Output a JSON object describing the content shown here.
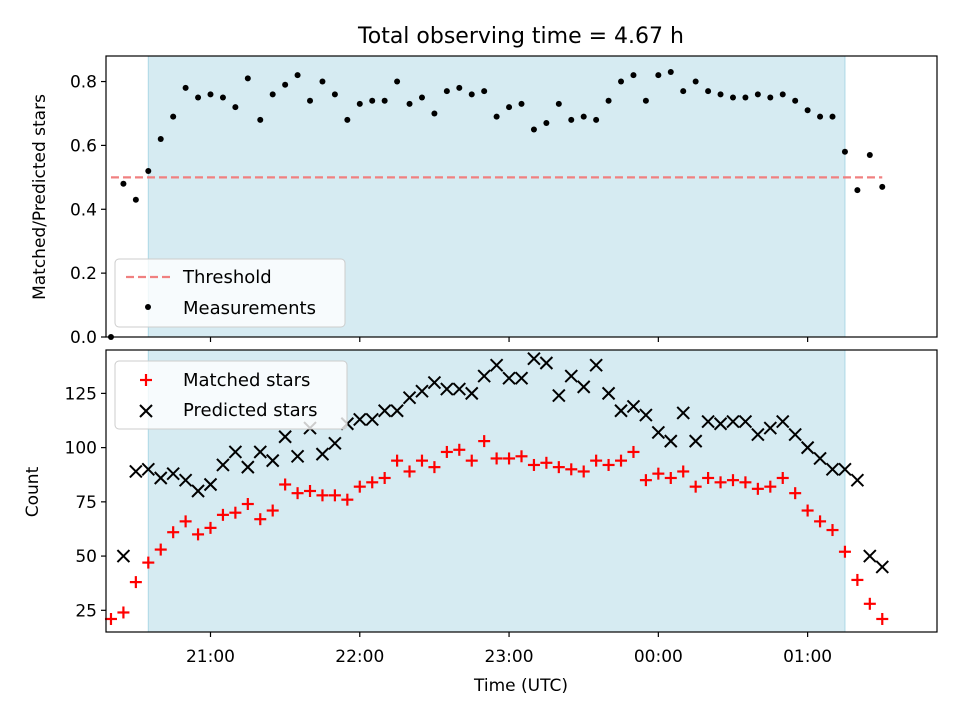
{
  "chart_data": {
    "title": "Total observing time = 4.67 h",
    "xlabel": "Time (UTC)",
    "x_range": [
      "20:18",
      "01:52"
    ],
    "x_ticks": [
      "21:00",
      "22:00",
      "23:00",
      "00:00",
      "01:00"
    ],
    "shaded_interval": [
      "20:35",
      "01:15"
    ],
    "shade_color": "#add8e6",
    "top_panel": {
      "type": "scatter",
      "ylabel": "Matched/Predicted stars",
      "ylim": [
        0,
        0.88
      ],
      "y_ticks": [
        "0.0",
        "0.2",
        "0.4",
        "0.6",
        "0.8"
      ],
      "threshold": {
        "name": "Threshold",
        "value": 0.5,
        "from": "20:20",
        "to": "01:30",
        "color": "#f08080"
      },
      "series": [
        {
          "name": "Measurements",
          "color": "#000000",
          "points": [
            [
              "20:20",
              0.0
            ],
            [
              "20:25",
              0.48
            ],
            [
              "20:30",
              0.43
            ],
            [
              "20:35",
              0.52
            ],
            [
              "20:40",
              0.62
            ],
            [
              "20:45",
              0.69
            ],
            [
              "20:50",
              0.78
            ],
            [
              "20:55",
              0.75
            ],
            [
              "21:00",
              0.76
            ],
            [
              "21:05",
              0.75
            ],
            [
              "21:10",
              0.72
            ],
            [
              "21:15",
              0.81
            ],
            [
              "21:20",
              0.68
            ],
            [
              "21:25",
              0.76
            ],
            [
              "21:30",
              0.79
            ],
            [
              "21:35",
              0.82
            ],
            [
              "21:40",
              0.74
            ],
            [
              "21:45",
              0.8
            ],
            [
              "21:50",
              0.76
            ],
            [
              "21:55",
              0.68
            ],
            [
              "22:00",
              0.73
            ],
            [
              "22:05",
              0.74
            ],
            [
              "22:10",
              0.74
            ],
            [
              "22:15",
              0.8
            ],
            [
              "22:20",
              0.73
            ],
            [
              "22:25",
              0.75
            ],
            [
              "22:30",
              0.7
            ],
            [
              "22:35",
              0.77
            ],
            [
              "22:40",
              0.78
            ],
            [
              "22:45",
              0.76
            ],
            [
              "22:50",
              0.77
            ],
            [
              "22:55",
              0.69
            ],
            [
              "23:00",
              0.72
            ],
            [
              "23:05",
              0.73
            ],
            [
              "23:10",
              0.65
            ],
            [
              "23:15",
              0.67
            ],
            [
              "23:20",
              0.73
            ],
            [
              "23:25",
              0.68
            ],
            [
              "23:30",
              0.69
            ],
            [
              "23:35",
              0.68
            ],
            [
              "23:40",
              0.74
            ],
            [
              "23:45",
              0.8
            ],
            [
              "23:50",
              0.82
            ],
            [
              "23:55",
              0.74
            ],
            [
              "00:00",
              0.82
            ],
            [
              "00:05",
              0.83
            ],
            [
              "00:10",
              0.77
            ],
            [
              "00:15",
              0.8
            ],
            [
              "00:20",
              0.77
            ],
            [
              "00:25",
              0.76
            ],
            [
              "00:30",
              0.75
            ],
            [
              "00:35",
              0.75
            ],
            [
              "00:40",
              0.76
            ],
            [
              "00:45",
              0.75
            ],
            [
              "00:50",
              0.76
            ],
            [
              "00:55",
              0.74
            ],
            [
              "01:00",
              0.71
            ],
            [
              "01:05",
              0.69
            ],
            [
              "01:10",
              0.69
            ],
            [
              "01:15",
              0.58
            ],
            [
              "01:20",
              0.46
            ],
            [
              "01:25",
              0.57
            ],
            [
              "01:30",
              0.47
            ]
          ]
        }
      ],
      "legend": {
        "position": "lower left",
        "entries": [
          "Threshold",
          "Measurements"
        ]
      }
    },
    "bottom_panel": {
      "type": "scatter",
      "ylabel": "Count",
      "ylim": [
        15,
        145
      ],
      "y_ticks": [
        "25",
        "50",
        "75",
        "100",
        "125"
      ],
      "series": [
        {
          "name": "Matched stars",
          "marker": "+",
          "color": "#ff0000",
          "points": [
            [
              "20:20",
              21
            ],
            [
              "20:25",
              24
            ],
            [
              "20:30",
              38
            ],
            [
              "20:35",
              47
            ],
            [
              "20:40",
              53
            ],
            [
              "20:45",
              61
            ],
            [
              "20:50",
              66
            ],
            [
              "20:55",
              60
            ],
            [
              "21:00",
              63
            ],
            [
              "21:05",
              69
            ],
            [
              "21:10",
              70
            ],
            [
              "21:15",
              74
            ],
            [
              "21:20",
              67
            ],
            [
              "21:25",
              71
            ],
            [
              "21:30",
              83
            ],
            [
              "21:35",
              79
            ],
            [
              "21:40",
              80
            ],
            [
              "21:45",
              78
            ],
            [
              "21:50",
              78
            ],
            [
              "21:55",
              76
            ],
            [
              "22:00",
              82
            ],
            [
              "22:05",
              84
            ],
            [
              "22:10",
              86
            ],
            [
              "22:15",
              94
            ],
            [
              "22:20",
              89
            ],
            [
              "22:25",
              94
            ],
            [
              "22:30",
              91
            ],
            [
              "22:35",
              98
            ],
            [
              "22:40",
              99
            ],
            [
              "22:45",
              94
            ],
            [
              "22:50",
              103
            ],
            [
              "22:55",
              95
            ],
            [
              "23:00",
              95
            ],
            [
              "23:05",
              96
            ],
            [
              "23:10",
              92
            ],
            [
              "23:15",
              93
            ],
            [
              "23:20",
              91
            ],
            [
              "23:25",
              90
            ],
            [
              "23:30",
              89
            ],
            [
              "23:35",
              94
            ],
            [
              "23:40",
              92
            ],
            [
              "23:45",
              94
            ],
            [
              "23:50",
              98
            ],
            [
              "23:55",
              85
            ],
            [
              "00:00",
              88
            ],
            [
              "00:05",
              86
            ],
            [
              "00:10",
              89
            ],
            [
              "00:15",
              82
            ],
            [
              "00:20",
              86
            ],
            [
              "00:25",
              84
            ],
            [
              "00:30",
              85
            ],
            [
              "00:35",
              84
            ],
            [
              "00:40",
              81
            ],
            [
              "00:45",
              82
            ],
            [
              "00:50",
              86
            ],
            [
              "00:55",
              79
            ],
            [
              "01:00",
              71
            ],
            [
              "01:05",
              66
            ],
            [
              "01:10",
              62
            ],
            [
              "01:15",
              52
            ],
            [
              "01:20",
              39
            ],
            [
              "01:25",
              28
            ],
            [
              "01:30",
              21
            ]
          ]
        },
        {
          "name": "Predicted stars",
          "marker": "x",
          "color": "#000000",
          "points": [
            [
              "20:25",
              50
            ],
            [
              "20:30",
              89
            ],
            [
              "20:35",
              90
            ],
            [
              "20:40",
              86
            ],
            [
              "20:45",
              88
            ],
            [
              "20:50",
              85
            ],
            [
              "20:55",
              80
            ],
            [
              "21:00",
              83
            ],
            [
              "21:05",
              92
            ],
            [
              "21:10",
              98
            ],
            [
              "21:15",
              91
            ],
            [
              "21:20",
              98
            ],
            [
              "21:25",
              94
            ],
            [
              "21:30",
              105
            ],
            [
              "21:35",
              96
            ],
            [
              "21:40",
              109
            ],
            [
              "21:45",
              97
            ],
            [
              "21:50",
              102
            ],
            [
              "21:55",
              111
            ],
            [
              "22:00",
              113
            ],
            [
              "22:05",
              113
            ],
            [
              "22:10",
              117
            ],
            [
              "22:15",
              117
            ],
            [
              "22:20",
              123
            ],
            [
              "22:25",
              126
            ],
            [
              "22:30",
              130
            ],
            [
              "22:35",
              127
            ],
            [
              "22:40",
              127
            ],
            [
              "22:45",
              125
            ],
            [
              "22:50",
              133
            ],
            [
              "22:55",
              138
            ],
            [
              "23:00",
              132
            ],
            [
              "23:05",
              132
            ],
            [
              "23:10",
              141
            ],
            [
              "23:15",
              139
            ],
            [
              "23:20",
              124
            ],
            [
              "23:25",
              133
            ],
            [
              "23:30",
              128
            ],
            [
              "23:35",
              138
            ],
            [
              "23:40",
              125
            ],
            [
              "23:45",
              117
            ],
            [
              "23:50",
              119
            ],
            [
              "23:55",
              115
            ],
            [
              "00:00",
              107
            ],
            [
              "00:05",
              103
            ],
            [
              "00:10",
              116
            ],
            [
              "00:15",
              103
            ],
            [
              "00:20",
              112
            ],
            [
              "00:25",
              111
            ],
            [
              "00:30",
              112
            ],
            [
              "00:35",
              112
            ],
            [
              "00:40",
              106
            ],
            [
              "00:45",
              109
            ],
            [
              "00:50",
              112
            ],
            [
              "00:55",
              106
            ],
            [
              "01:00",
              100
            ],
            [
              "01:05",
              95
            ],
            [
              "01:10",
              90
            ],
            [
              "01:15",
              90
            ],
            [
              "01:20",
              85
            ],
            [
              "01:25",
              50
            ],
            [
              "01:30",
              45
            ]
          ]
        }
      ],
      "legend": {
        "position": "upper left",
        "entries": [
          "Matched stars",
          "Predicted stars"
        ]
      }
    }
  }
}
